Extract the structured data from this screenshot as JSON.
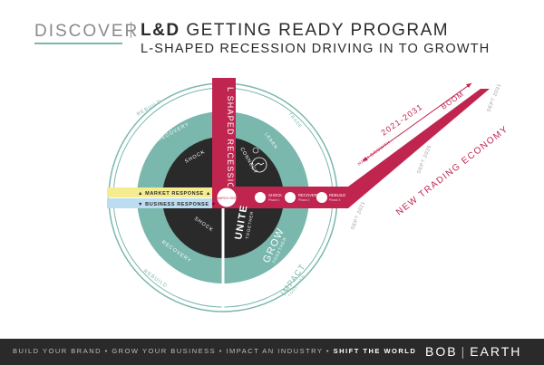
{
  "header": {
    "kicker": "DISCOVER",
    "title_bold": "L&D",
    "title_rest": "GETTING READY PROGRAM",
    "subtitle": "L-SHAPED RECESSION DRIVING IN TO GROWTH"
  },
  "wheel": {
    "vertical_bar": "L SHAPED RECESSION",
    "market_response": "▲ MARKET RESPONSE ▲",
    "business_response": "▼ BUSINESS RESPONSE ▼",
    "labels": {
      "unite": "UNITE",
      "unite_sub": "TOGETHER",
      "connect": "CONNECT",
      "grow": "GROW",
      "grow_sub": "TOGETHER",
      "impact": "IMPACT",
      "impact_sub": "TOGETHER",
      "learn": "LEARN",
      "trade": "TRADE",
      "rebuild_top": "REBUILD",
      "rebuild_bottom": "REBUILD",
      "recovery_top": "RECOVERY",
      "recovery_bottom": "RECOVERY",
      "shock_top": "SHOCK",
      "shock_bottom": "SHOCK"
    },
    "milestones": [
      {
        "name": "MARCH 2020",
        "sub": ""
      },
      {
        "name": "SHOCK",
        "sub": "Phase 1"
      },
      {
        "name": "RECOVERY",
        "sub": "Phase 2"
      },
      {
        "name": "REBUILD",
        "sub": "Phase 3"
      }
    ]
  },
  "timeline": {
    "period": "2021-2031",
    "boom": "BOOM",
    "high_growth": "HIGH GROWTH",
    "economy": "NEW TRADING ECONOMY",
    "sept_2021": "SEPT 2021",
    "sept_2026": "SEPT 2026",
    "sept_2031": "SEPT 2031"
  },
  "footer": {
    "tagline": "BUILD YOUR BRAND • GROW YOUR BUSINESS • IMPACT AN INDUSTRY •",
    "tagline_bold": "SHIFT THE WORLD",
    "brand_left": "BOB",
    "brand_right": "EARTH"
  },
  "colors": {
    "teal": "#7ab7ad",
    "crimson": "#c0254f",
    "dark": "#2a2a2a",
    "yellow": "#f4ec8f",
    "blue": "#bcdcef"
  }
}
